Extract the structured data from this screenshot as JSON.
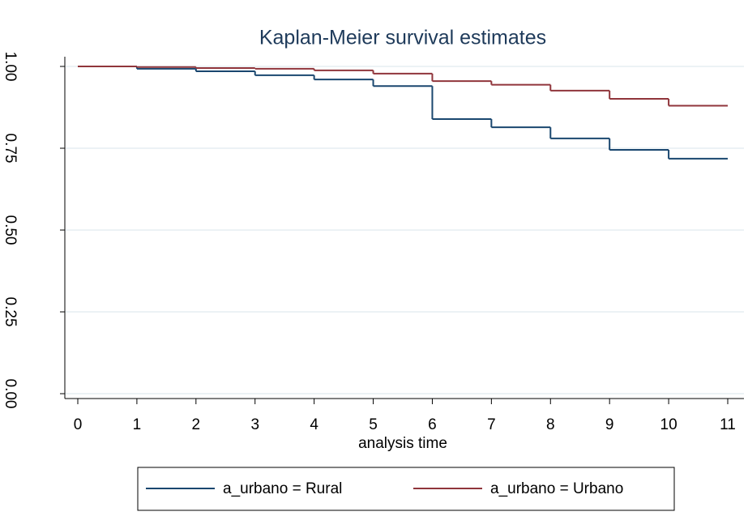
{
  "chart_data": {
    "type": "step",
    "title": "Kaplan-Meier survival estimates",
    "x_label": "analysis time",
    "x": [
      0,
      1,
      2,
      3,
      4,
      5,
      6,
      7,
      8,
      9,
      10
    ],
    "series": [
      {
        "name": "a_urbano = Rural",
        "color": "#1a476f",
        "values": [
          1.0,
          0.993,
          0.985,
          0.973,
          0.96,
          0.94,
          0.839,
          0.814,
          0.78,
          0.745,
          0.718
        ]
      },
      {
        "name": "a_urbano = Urbano",
        "color": "#90353b",
        "values": [
          1.0,
          0.998,
          0.995,
          0.993,
          0.988,
          0.978,
          0.955,
          0.944,
          0.926,
          0.901,
          0.88
        ]
      }
    ],
    "xlim": [
      0,
      11
    ],
    "xticks": [
      0,
      1,
      2,
      3,
      4,
      5,
      6,
      7,
      8,
      9,
      10,
      11
    ],
    "ylim": [
      0,
      1
    ],
    "yticks": [
      {
        "value": 0,
        "label": "0.00"
      },
      {
        "value": 0.25,
        "label": "0.25"
      },
      {
        "value": 0.5,
        "label": "0.50"
      },
      {
        "value": 0.75,
        "label": "0.75"
      },
      {
        "value": 1,
        "label": "1.00"
      }
    ],
    "grid": true,
    "legend": "bottom"
  }
}
